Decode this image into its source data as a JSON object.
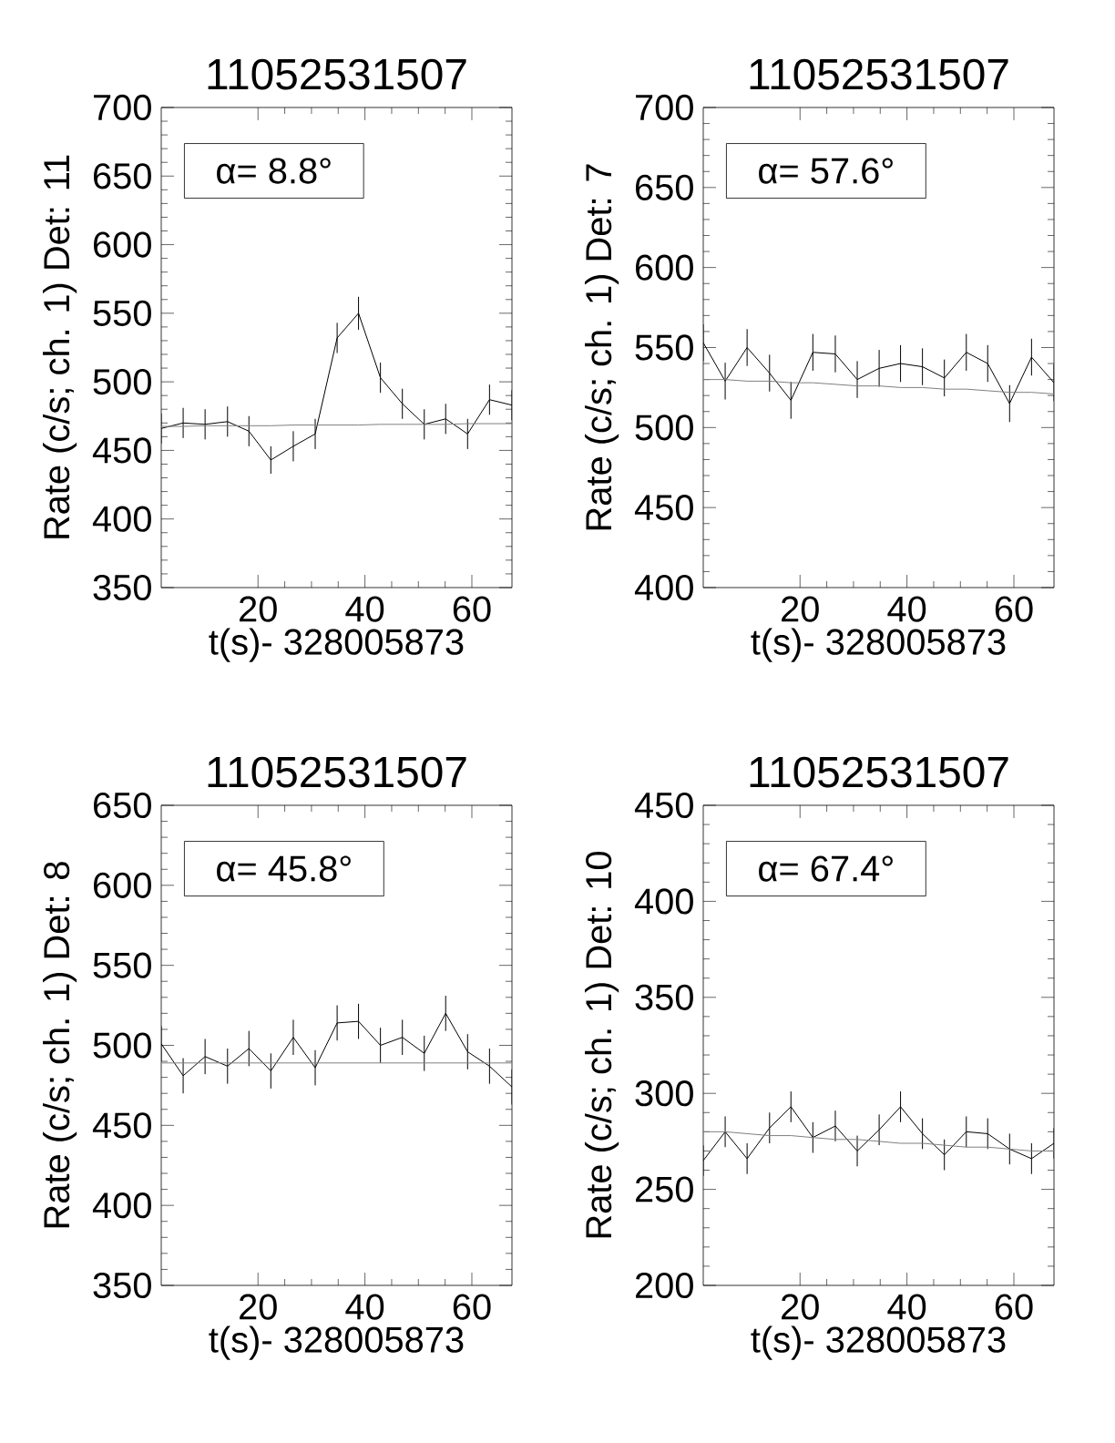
{
  "chart_data": [
    {
      "type": "line",
      "title": "11052531507",
      "xlabel": "t(s)- 328005873",
      "ylabel": "Rate (c/s; ch. 1) Det: 11",
      "annotations": [
        "α= 8.8°"
      ],
      "x": [
        1.9,
        6.0,
        10.1,
        14.3,
        18.3,
        22.4,
        26.6,
        30.7,
        34.8,
        38.8,
        42.9,
        47.0,
        51.1,
        55.1,
        59.2,
        63.3,
        67.5
      ],
      "xlim": [
        1.9,
        67.5
      ],
      "ylim": [
        350,
        700
      ],
      "xticks": [
        20,
        40,
        60
      ],
      "yticks": [
        350,
        400,
        450,
        500,
        550,
        600,
        650,
        700
      ],
      "series": [
        {
          "color": "#000000",
          "values": [
            466,
            470,
            469,
            471,
            464,
            443,
            453,
            462,
            532,
            550,
            503,
            484,
            469,
            473,
            462,
            487,
            483
          ],
          "errors": [
            11,
            11,
            11,
            11,
            11,
            10,
            11,
            11,
            11,
            12,
            11,
            11,
            11,
            11,
            11,
            11,
            11
          ]
        },
        {
          "color": "#808080",
          "values": [
            467.5,
            467.5,
            468,
            468,
            468,
            468,
            468.5,
            468.5,
            468.5,
            468.5,
            469,
            469,
            469,
            469,
            469.5,
            469.5,
            469.5
          ]
        }
      ]
    },
    {
      "type": "line",
      "title": "11052531507",
      "xlabel": "t(s)- 328005873",
      "ylabel": "Rate (c/s; ch. 1) Det: 7",
      "annotations": [
        "α= 57.6°"
      ],
      "x": [
        1.9,
        6.0,
        10.1,
        14.3,
        18.3,
        22.4,
        26.6,
        30.7,
        34.8,
        38.8,
        42.9,
        47.0,
        51.1,
        55.1,
        59.2,
        63.3,
        67.5
      ],
      "xlim": [
        1.9,
        67.5
      ],
      "ylim": [
        400,
        700
      ],
      "xticks": [
        20,
        40,
        60
      ],
      "yticks": [
        400,
        450,
        500,
        550,
        600,
        650,
        700
      ],
      "series": [
        {
          "color": "#000000",
          "values": [
            553,
            529,
            550,
            534,
            517,
            547,
            546,
            530,
            537,
            540,
            538,
            531,
            547,
            540,
            515,
            544,
            528
          ],
          "errors": [
            11.5,
            11.5,
            11.5,
            11.5,
            11.5,
            11.5,
            11.5,
            11.5,
            11.5,
            11.5,
            11.5,
            11.5,
            11.5,
            11.5,
            11.5,
            11.5,
            11.5
          ]
        },
        {
          "color": "#808080",
          "values": [
            530,
            530,
            529,
            529,
            528,
            528,
            527,
            526,
            526,
            525,
            525,
            524,
            524,
            523,
            522,
            522,
            521
          ]
        }
      ]
    },
    {
      "type": "line",
      "title": "11052531507",
      "xlabel": "t(s)- 328005873",
      "ylabel": "Rate (c/s; ch. 1) Det: 8",
      "annotations": [
        "α= 45.8°"
      ],
      "x": [
        1.9,
        6.0,
        10.1,
        14.3,
        18.3,
        22.4,
        26.6,
        30.7,
        34.8,
        38.8,
        42.9,
        47.0,
        51.1,
        55.1,
        59.2,
        63.3,
        67.5
      ],
      "xlim": [
        1.9,
        67.5
      ],
      "ylim": [
        350,
        650
      ],
      "xticks": [
        20,
        40,
        60
      ],
      "yticks": [
        350,
        400,
        450,
        500,
        550,
        600,
        650
      ],
      "series": [
        {
          "color": "#000000",
          "values": [
            501,
            481,
            493,
            487,
            498,
            484,
            505,
            486,
            514,
            515,
            500,
            505,
            495,
            520,
            496,
            487,
            474
          ],
          "errors": [
            11,
            11,
            11,
            11,
            11,
            11,
            11,
            11,
            11,
            11,
            11,
            11,
            11,
            11,
            11,
            11,
            11
          ]
        },
        {
          "color": "#808080",
          "values": [
            489,
            489,
            489,
            489,
            489,
            489,
            489,
            489,
            489,
            489,
            489,
            489,
            489,
            489,
            489,
            489,
            489
          ]
        }
      ]
    },
    {
      "type": "line",
      "title": "11052531507",
      "xlabel": "t(s)- 328005873",
      "ylabel": "Rate (c/s; ch. 1) Det: 10",
      "annotations": [
        "α= 67.4°"
      ],
      "x": [
        1.9,
        6.0,
        10.1,
        14.3,
        18.3,
        22.4,
        26.6,
        30.7,
        34.8,
        38.8,
        42.9,
        47.0,
        51.1,
        55.1,
        59.2,
        63.3,
        67.5
      ],
      "xlim": [
        1.9,
        67.5
      ],
      "ylim": [
        200,
        450
      ],
      "xticks": [
        20,
        40,
        60
      ],
      "yticks": [
        200,
        250,
        300,
        350,
        400,
        450
      ],
      "series": [
        {
          "color": "#000000",
          "values": [
            265,
            280,
            266,
            282,
            293,
            277,
            283,
            270,
            281,
            293,
            279,
            268,
            280,
            279,
            271,
            266,
            274
          ],
          "errors": [
            8,
            8,
            8,
            8,
            8,
            8,
            8,
            8,
            8,
            8,
            8,
            8,
            8,
            8,
            8,
            8,
            8
          ]
        },
        {
          "color": "#808080",
          "values": [
            280,
            280,
            279,
            278,
            278,
            277,
            276,
            276,
            275,
            274,
            274,
            273,
            272,
            272,
            271,
            270,
            270
          ]
        }
      ]
    }
  ]
}
